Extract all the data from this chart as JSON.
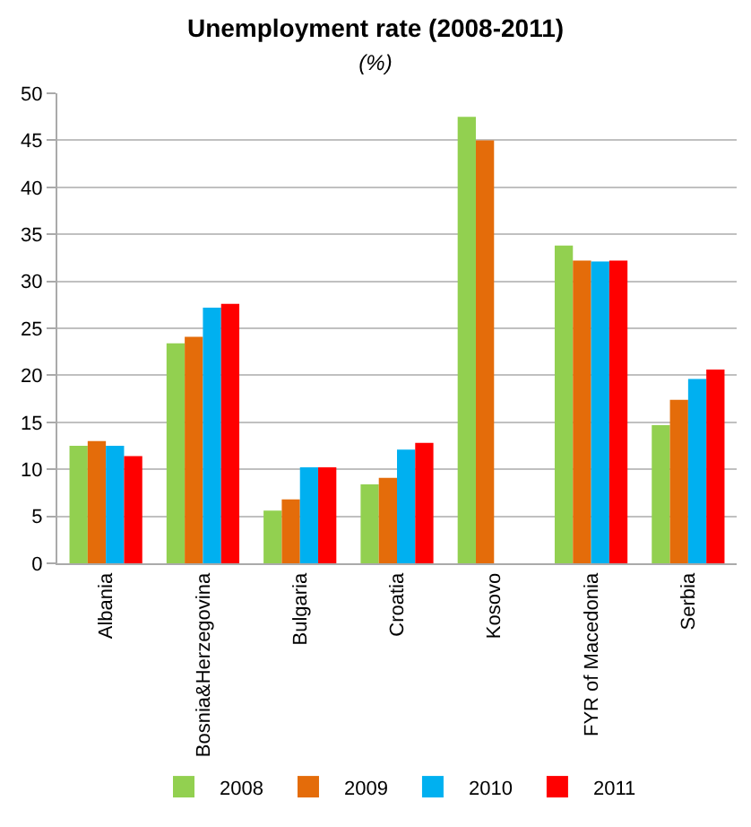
{
  "chart_data": {
    "type": "bar",
    "title": "Unemployment rate (2008-2011)",
    "subtitle": "(%)",
    "categories": [
      "Albania",
      "Bosnia&Herzegovina",
      "Bulgaria",
      "Croatia",
      "Kosovo",
      "FYR of Macedonia",
      "Serbia"
    ],
    "series": [
      {
        "name": "2008",
        "color": "#92d050",
        "values": [
          12.5,
          23.4,
          5.6,
          8.4,
          47.5,
          33.8,
          14.7
        ]
      },
      {
        "name": "2009",
        "color": "#e46c0a",
        "values": [
          13.0,
          24.1,
          6.8,
          9.1,
          45.0,
          32.2,
          17.4
        ]
      },
      {
        "name": "2010",
        "color": "#00b0f0",
        "values": [
          12.5,
          27.2,
          10.2,
          12.1,
          null,
          32.1,
          19.6
        ]
      },
      {
        "name": "2011",
        "color": "#ff0000",
        "values": [
          11.4,
          27.6,
          10.2,
          12.8,
          null,
          32.2,
          20.6
        ]
      }
    ],
    "ylim": [
      0,
      50
    ],
    "yticks": [
      0,
      5,
      10,
      15,
      20,
      25,
      30,
      35,
      40,
      45,
      50
    ],
    "grid": "y",
    "legend": "bottom"
  }
}
